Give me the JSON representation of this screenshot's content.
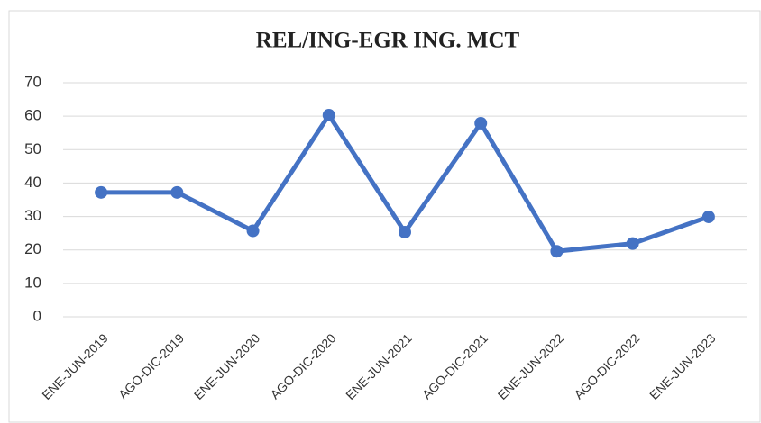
{
  "chart_data": {
    "type": "line",
    "title": "REL/ING-EGR ING. MCT",
    "categories": [
      "ENE-JUN-2019",
      "AGO-DIC-2019",
      "ENE-JUN-2020",
      "AGO-DIC-2020",
      "ENE-JUN-2021",
      "AGO-DIC-2021",
      "ENE-JUN-2022",
      "AGO-DIC-2022",
      "ENE-JUN-2023"
    ],
    "series": [
      {
        "name": "REL/ING-EGR ING. MCT",
        "color": "#4472c4",
        "values": [
          37.2,
          37.2,
          25.7,
          60.3,
          25.3,
          57.9,
          19.6,
          21.9,
          29.9
        ]
      }
    ],
    "ylim": [
      0,
      70
    ],
    "yticks": [
      0,
      10,
      20,
      30,
      40,
      50,
      60,
      70
    ],
    "grid": true
  }
}
